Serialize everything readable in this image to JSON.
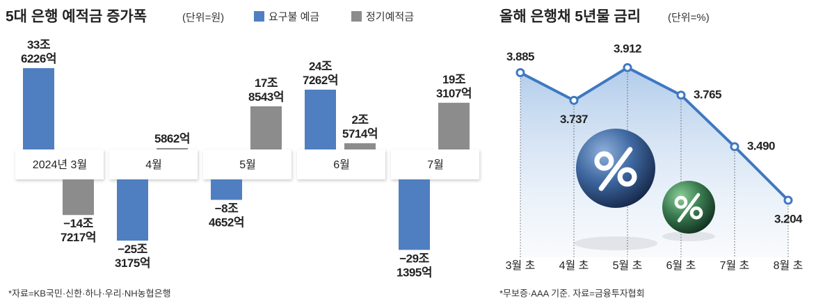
{
  "chart_data": [
    {
      "type": "bar",
      "title": "5대 은행 예적금 증가폭",
      "subtitle": "(단위=원)",
      "categories": [
        "2024년 3월",
        "4월",
        "5월",
        "6월",
        "7월"
      ],
      "series": [
        {
          "name": "요구불 예금",
          "color": "#4f7fc0",
          "values": [
            336226,
            -253175,
            -84652,
            247262,
            -291395
          ],
          "value_labels": [
            "33조 6226억",
            "−25조 3175억",
            "−8조 4652억",
            "24조 7262억",
            "−29조 1395억"
          ]
        },
        {
          "name": "정기예적금",
          "color": "#8c8c8c",
          "values": [
            -147217,
            5862,
            178543,
            25714,
            193107
          ],
          "value_labels": [
            "−14조 7217억",
            "5862억",
            "17조 8543억",
            "2조 5714억",
            "19조 3107억"
          ]
        }
      ],
      "source": "*자료=KB국민·신한·하나·우리·NH농협은행"
    },
    {
      "type": "line",
      "title": "올해 은행채 5년물 금리",
      "subtitle": "(단위=%)",
      "categories": [
        "3월 초",
        "4월 초",
        "5월 초",
        "6월 초",
        "7월 초",
        "8월 초"
      ],
      "values": [
        3.885,
        3.737,
        3.912,
        3.765,
        3.49,
        3.204
      ],
      "value_labels": [
        "3.885",
        "3.737",
        "3.912",
        "3.765",
        "3.490",
        "3.204"
      ],
      "color": "#3f78c0",
      "ylim": [
        2.9,
        4.05
      ],
      "source": "*무보증·AAA 기준. 자료=금융투자협회"
    }
  ]
}
